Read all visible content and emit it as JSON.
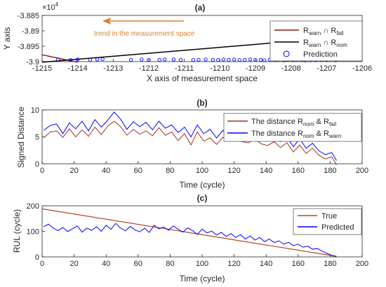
{
  "chart_data": [
    {
      "type": "scatter",
      "panel_label": "(a)",
      "xlabel": "X axis of measurement space",
      "ylabel": "Y axis",
      "xlim": [
        -1215,
        -1206
      ],
      "ylim": [
        -39000,
        -38850
      ],
      "xticks": [
        -1215,
        -1214,
        -1213,
        -1212,
        -1211,
        -1210,
        -1209,
        -1208,
        -1207,
        -1206
      ],
      "yticks": [
        -3.9,
        -3.895,
        -3.89,
        -3.885
      ],
      "ytick_labels": [
        "-3.9",
        "-3.895",
        "-3.89",
        "-3.885"
      ],
      "exponent_label": "×10",
      "exponent_power": "4",
      "annotation": "trend in the measurement space",
      "arrow_color": "#d9822b",
      "legend_position": "top-right",
      "legend": [
        {
          "main": "R",
          "sub1": "warn",
          "mid": " ∩ R",
          "sub2": "fail",
          "color": "#8b1a1a",
          "kind": "line"
        },
        {
          "main": "R",
          "sub1": "warn",
          "mid": " ∩ R",
          "sub2": "nom",
          "color": "#000000",
          "kind": "line"
        },
        {
          "text": "Prediction",
          "color": "#0000ff",
          "kind": "marker"
        }
      ],
      "lines": [
        {
          "color": "#8b1a1a",
          "x": [
            -1215,
            -1214.0
          ],
          "y": [
            -38978,
            -39002
          ]
        },
        {
          "color": "#000000",
          "x": [
            -1215,
            -1206
          ],
          "y": [
            -39002,
            -38915
          ]
        }
      ],
      "prediction_color": "#0000ff",
      "prediction_x": [
        -1214.55,
        -1214.2,
        -1214.0,
        -1213.65,
        -1213.45,
        -1213.3,
        -1212.5,
        -1212.2,
        -1212.0,
        -1211.7,
        -1211.55,
        -1211.3,
        -1211.1,
        -1210.75,
        -1210.6,
        -1210.4,
        -1210.2,
        -1210.05,
        -1209.9,
        -1209.75,
        -1209.6,
        -1209.45,
        -1209.3,
        -1209.15,
        -1209.0,
        -1208.85,
        -1208.75,
        -1208.6,
        -1208.45,
        -1208.35,
        -1208.2,
        -1208.1,
        -1207.95,
        -1207.85,
        -1207.7,
        -1207.6,
        -1207.45,
        -1207.3,
        -1207.15,
        -1207.0,
        -1206.75
      ],
      "prediction_y": [
        -38993,
        -38995,
        -38993,
        -38994,
        -38993,
        -38992,
        -38994,
        -38993,
        -38995,
        -38994,
        -38993,
        -38993,
        -38994,
        -38995,
        -38994,
        -38993,
        -38994,
        -38995,
        -38993,
        -38994,
        -38993,
        -38995,
        -38994,
        -38993,
        -38995,
        -38994,
        -38996,
        -38994,
        -38995,
        -38993,
        -38996,
        -38994,
        -38995,
        -38993,
        -38994,
        -38996,
        -38995,
        -38994,
        -38993,
        -38994,
        -38995
      ]
    },
    {
      "type": "line",
      "panel_label": "(b)",
      "xlabel": "Time (cycle)",
      "ylabel": "Signed Distance",
      "xlim": [
        0,
        200
      ],
      "ylim": [
        0,
        10
      ],
      "xticks": [
        0,
        20,
        40,
        60,
        80,
        100,
        120,
        140,
        160,
        180,
        200
      ],
      "yticks": [
        0,
        5,
        10
      ],
      "legend_position": "top-right",
      "legend": [
        {
          "main": "The distance R",
          "sub1": "nom",
          "mid": " & R",
          "sub2": "fail",
          "color": "#a0321e"
        },
        {
          "main": "The distance R",
          "sub1": "nom",
          "mid": " & R",
          "sub2": "warn",
          "color": "#0000ff"
        }
      ],
      "series_colors": [
        "#a0321e",
        "#0000ff"
      ],
      "x": [
        1,
        5,
        9,
        13,
        17,
        21,
        25,
        29,
        33,
        37,
        41,
        45,
        49,
        53,
        57,
        61,
        65,
        69,
        73,
        77,
        81,
        85,
        89,
        93,
        97,
        101,
        105,
        109,
        113,
        117,
        121,
        125,
        129,
        133,
        137,
        141,
        145,
        149,
        153,
        157,
        161,
        165,
        169,
        173,
        177,
        181,
        184
      ],
      "fail": [
        4.8,
        5.9,
        6.1,
        4.9,
        6.5,
        5.0,
        6.3,
        5.1,
        6.8,
        5.4,
        7.0,
        7.9,
        6.9,
        5.3,
        6.4,
        5.5,
        6.1,
        5.2,
        6.7,
        5.3,
        5.9,
        4.3,
        5.6,
        3.5,
        5.9,
        4.2,
        4.8,
        3.6,
        4.9,
        4.4,
        4.5,
        4.1,
        3.9,
        4.6,
        3.7,
        3.4,
        4.1,
        3.0,
        3.9,
        2.2,
        3.5,
        1.9,
        2.9,
        1.6,
        0.9,
        1.3,
        -0.2
      ],
      "warn": [
        6.2,
        7.1,
        7.4,
        5.6,
        7.6,
        6.5,
        7.9,
        6.1,
        8.2,
        6.8,
        8.1,
        9.6,
        8.3,
        6.4,
        7.8,
        6.9,
        7.7,
        6.3,
        7.9,
        6.6,
        7.2,
        5.8,
        6.8,
        5.0,
        7.2,
        5.6,
        6.4,
        4.8,
        6.2,
        5.2,
        5.6,
        5.3,
        5.1,
        5.5,
        4.8,
        4.5,
        5.1,
        4.1,
        4.8,
        3.2,
        4.6,
        2.9,
        3.8,
        2.4,
        1.7,
        2.1,
        0.6
      ]
    },
    {
      "type": "line",
      "panel_label": "(c)",
      "xlabel": "Time (cycle)",
      "ylabel": "RUL (cycle)",
      "xlim": [
        0,
        200
      ],
      "ylim": [
        0,
        200
      ],
      "xticks": [
        0,
        20,
        40,
        60,
        80,
        100,
        120,
        140,
        160,
        180,
        200
      ],
      "yticks": [
        0,
        100,
        200
      ],
      "legend_position": "top-right",
      "series": [
        {
          "name": "True",
          "color": "#b5451b",
          "x": [
            0,
            184
          ],
          "y": [
            188,
            2
          ]
        },
        {
          "name": "Predicted",
          "color": "#0000ff",
          "x": [
            1,
            4,
            7,
            10,
            13,
            16,
            19,
            22,
            25,
            28,
            31,
            34,
            37,
            40,
            43,
            46,
            49,
            52,
            55,
            58,
            61,
            64,
            67,
            70,
            73,
            76,
            79,
            82,
            85,
            88,
            91,
            94,
            97,
            100,
            103,
            106,
            109,
            112,
            115,
            118,
            121,
            124,
            127,
            130,
            133,
            136,
            139,
            142,
            145,
            148,
            151,
            154,
            157,
            160,
            163,
            166,
            169,
            172,
            175,
            178,
            181,
            184
          ],
          "y": [
            118,
            128,
            112,
            103,
            115,
            99,
            110,
            121,
            97,
            113,
            104,
            118,
            100,
            124,
            108,
            131,
            113,
            102,
            119,
            106,
            98,
            112,
            96,
            124,
            110,
            117,
            104,
            121,
            108,
            97,
            114,
            103,
            88,
            109,
            94,
            101,
            86,
            96,
            80,
            91,
            76,
            87,
            70,
            82,
            66,
            76,
            60,
            70,
            56,
            63,
            50,
            57,
            44,
            50,
            38,
            42,
            30,
            33,
            22,
            14,
            6,
            2
          ]
        }
      ]
    }
  ]
}
